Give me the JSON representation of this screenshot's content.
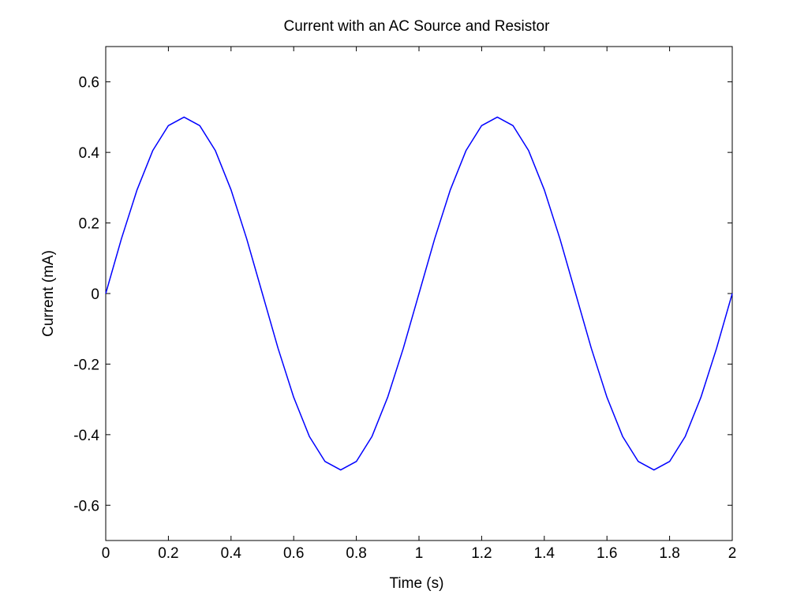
{
  "chart_data": {
    "type": "line",
    "title": "Current with an AC Source and Resistor",
    "xlabel": "Time (s)",
    "ylabel": "Current (mA)",
    "xlim": [
      0,
      2
    ],
    "ylim": [
      -0.7,
      0.7
    ],
    "xticks": [
      0,
      0.2,
      0.4,
      0.6,
      0.8,
      1,
      1.2,
      1.4,
      1.6,
      1.8,
      2
    ],
    "xtick_labels": [
      "0",
      "0.2",
      "0.4",
      "0.6",
      "0.8",
      "1",
      "1.2",
      "1.4",
      "1.6",
      "1.8",
      "2"
    ],
    "yticks": [
      -0.6,
      -0.4,
      -0.2,
      0,
      0.2,
      0.4,
      0.6
    ],
    "ytick_labels": [
      "-0.6",
      "-0.4",
      "-0.2",
      "0",
      "0.2",
      "0.4",
      "0.6"
    ],
    "grid": false,
    "series": [
      {
        "color": "#0000ff",
        "x": [
          0,
          0.05,
          0.1,
          0.15,
          0.2,
          0.25,
          0.3,
          0.35,
          0.4,
          0.45,
          0.5,
          0.55,
          0.6,
          0.65,
          0.7,
          0.75,
          0.8,
          0.85,
          0.9,
          0.95,
          1,
          1.05,
          1.1,
          1.15,
          1.2,
          1.25,
          1.3,
          1.35,
          1.4,
          1.45,
          1.5,
          1.55,
          1.6,
          1.65,
          1.7,
          1.75,
          1.8,
          1.85,
          1.9,
          1.95,
          2
        ],
        "y": [
          0,
          0.155,
          0.294,
          0.405,
          0.476,
          0.5,
          0.476,
          0.405,
          0.294,
          0.155,
          0,
          -0.155,
          -0.294,
          -0.405,
          -0.476,
          -0.5,
          -0.476,
          -0.405,
          -0.294,
          -0.155,
          0,
          0.155,
          0.294,
          0.405,
          0.476,
          0.5,
          0.476,
          0.405,
          0.294,
          0.155,
          0,
          -0.155,
          -0.294,
          -0.405,
          -0.476,
          -0.5,
          -0.476,
          -0.405,
          -0.294,
          -0.155,
          0
        ]
      }
    ]
  }
}
